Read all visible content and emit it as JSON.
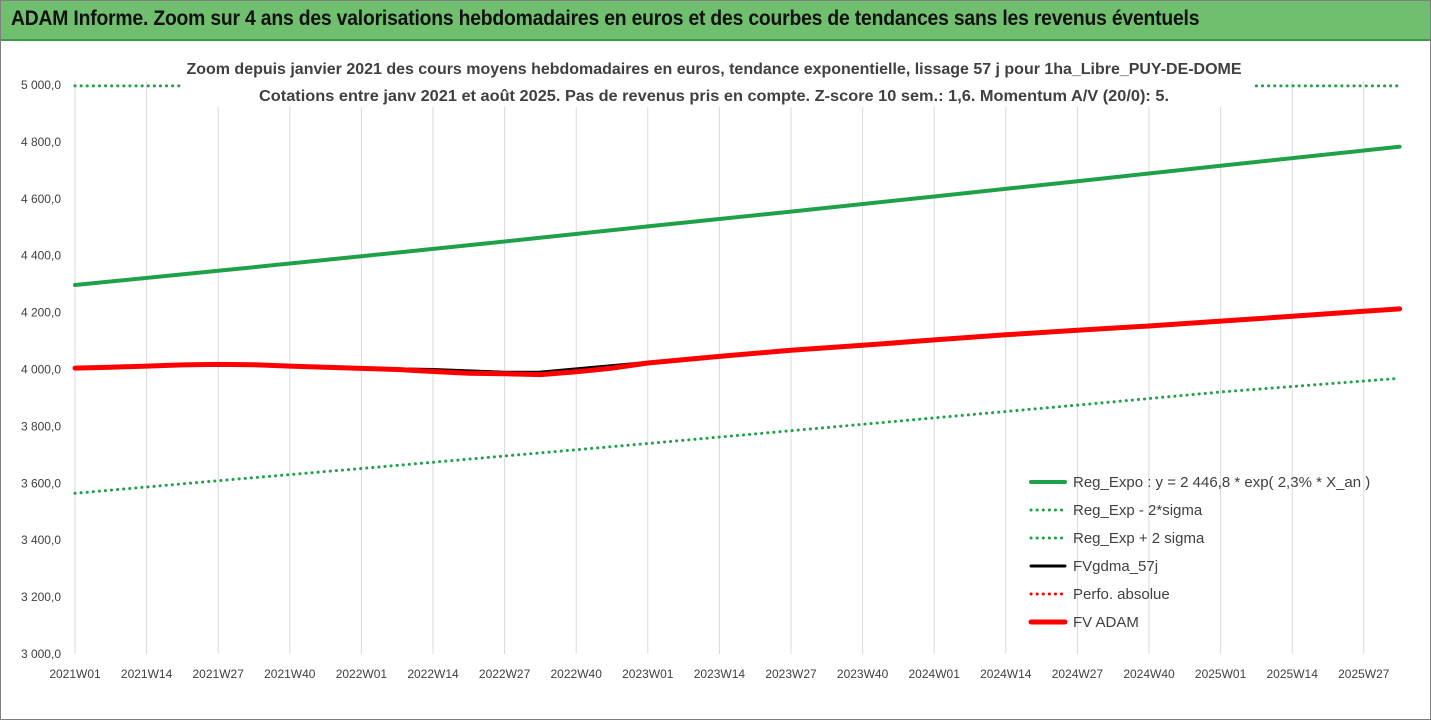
{
  "header": {
    "title": "ADAM Informe. Zoom sur 4 ans des valorisations hebdomadaires en euros et des courbes de tendances sans les revenus éventuels"
  },
  "chart_data": {
    "type": "line",
    "title_lines": [
      "Zoom depuis janvier 2021 des cours moyens hebdomadaires en euros, tendance exponentielle, lissage 57 j pour 1ha_Libre_PUY-DE-DOME",
      "Cotations entre janv 2021 et août 2025.  Pas de revenus pris en compte. Z-score 10 sem.: 1,6. Momentum A/V (20/0): 5."
    ],
    "ylim": [
      3000,
      5000
    ],
    "y_ticks": [
      "3 000,0",
      "3 200,0",
      "3 400,0",
      "3 600,0",
      "3 800,0",
      "4 000,0",
      "4 200,0",
      "4 400,0",
      "4 600,0",
      "4 800,0",
      "5 000,0"
    ],
    "x_ticks": [
      "2021W01",
      "2021W14",
      "2021W27",
      "2021W40",
      "2022W01",
      "2022W14",
      "2022W27",
      "2022W40",
      "2023W01",
      "2023W14",
      "2023W27",
      "2023W40",
      "2024W01",
      "2024W14",
      "2024W27",
      "2024W40",
      "2025W01",
      "2025W14",
      "2025W27"
    ],
    "grid": "vertical",
    "legend_position": "bottom-right",
    "x_index_range": [
      0,
      18.5
    ],
    "series": [
      {
        "name": "Reg_Expo : y = 2 446,8 * exp( 2,3% *  X_an )",
        "color": "#1fa14a",
        "style": "solid",
        "width": 4,
        "x": [
          0,
          2,
          4,
          6,
          8,
          10,
          12,
          14,
          16,
          18.5
        ],
        "y": [
          4297,
          4347,
          4398,
          4450,
          4503,
          4555,
          4608,
          4662,
          4716,
          4783
        ]
      },
      {
        "name": "Reg_Exp - 2*sigma",
        "color": "#1fa14a",
        "style": "dotted",
        "width": 3,
        "x": [
          0,
          2,
          4,
          6,
          8,
          10,
          12,
          14,
          16,
          18.5
        ],
        "y": [
          3565,
          3609,
          3652,
          3696,
          3740,
          3785,
          3830,
          3875,
          3921,
          3969
        ]
      },
      {
        "name": "Reg_Exp + 2 sigma",
        "color": "#1fa14a",
        "style": "dotted",
        "width": 3,
        "x": [
          0,
          1.5
        ],
        "y": [
          4997,
          4997
        ],
        "x2": [
          16.5,
          18.5
        ],
        "y2": [
          4997,
          4997
        ]
      },
      {
        "name": "FVgdma_57j",
        "color": "#000000",
        "style": "solid",
        "width": 3,
        "x": [
          0,
          1,
          2,
          3,
          4,
          5,
          6,
          6.5,
          7,
          8,
          9,
          10,
          11,
          12,
          13,
          14,
          15,
          16,
          17,
          18.5
        ],
        "y": [
          4005,
          4012,
          4018,
          4012,
          4005,
          4000,
          3990,
          3991,
          4002,
          4025,
          4046,
          4068,
          4085,
          4104,
          4122,
          4138,
          4152,
          4170,
          4188,
          4213
        ]
      },
      {
        "name": "Perfo. absolue",
        "color": "#ff0000",
        "style": "dotted",
        "width": 3,
        "x": [],
        "y": []
      },
      {
        "name": "FV ADAM",
        "color": "#ff0000",
        "style": "solid",
        "width": 5,
        "x": [
          0,
          0.5,
          1,
          1.5,
          2,
          2.5,
          3,
          3.5,
          4,
          4.5,
          5,
          5.5,
          6,
          6.5,
          7,
          7.5,
          8,
          9,
          10,
          11,
          12,
          13,
          14,
          15,
          16,
          17,
          18,
          18.5
        ],
        "y": [
          4005,
          4008,
          4012,
          4016,
          4018,
          4017,
          4012,
          4008,
          4004,
          4000,
          3993,
          3987,
          3985,
          3982,
          3992,
          4005,
          4023,
          4046,
          4068,
          4085,
          4104,
          4122,
          4138,
          4153,
          4170,
          4187,
          4205,
          4213
        ]
      }
    ]
  }
}
